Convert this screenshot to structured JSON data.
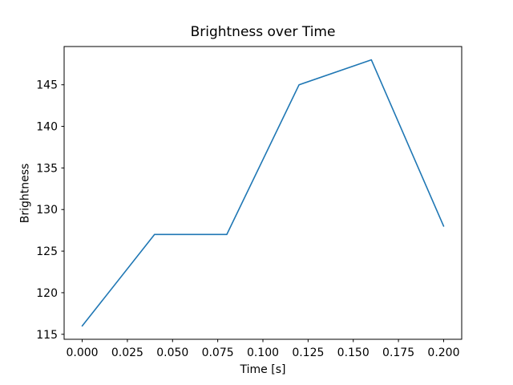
{
  "chart_data": {
    "type": "line",
    "title": "Brightness over Time",
    "xlabel": "Time [s]",
    "ylabel": "Brightness",
    "x": [
      0.0,
      0.04,
      0.08,
      0.12,
      0.16,
      0.2
    ],
    "series": [
      {
        "name": "brightness",
        "color": "#1f77b4",
        "values": [
          116,
          127,
          127,
          145,
          148,
          128
        ]
      }
    ],
    "xlim": [
      -0.01,
      0.21
    ],
    "ylim": [
      114.4,
      149.6
    ],
    "xticks": [
      0.0,
      0.025,
      0.05,
      0.075,
      0.1,
      0.125,
      0.15,
      0.175,
      0.2
    ],
    "xtick_labels": [
      "0.000",
      "0.025",
      "0.050",
      "0.075",
      "0.100",
      "0.125",
      "0.150",
      "0.175",
      "0.200"
    ],
    "yticks": [
      115,
      120,
      125,
      130,
      135,
      140,
      145
    ],
    "ytick_labels": [
      "115",
      "120",
      "125",
      "130",
      "135",
      "140",
      "145"
    ],
    "grid": false,
    "legend_position": "none",
    "axis_color": "#000000",
    "background_color": "#ffffff",
    "line_width": 1.6
  }
}
